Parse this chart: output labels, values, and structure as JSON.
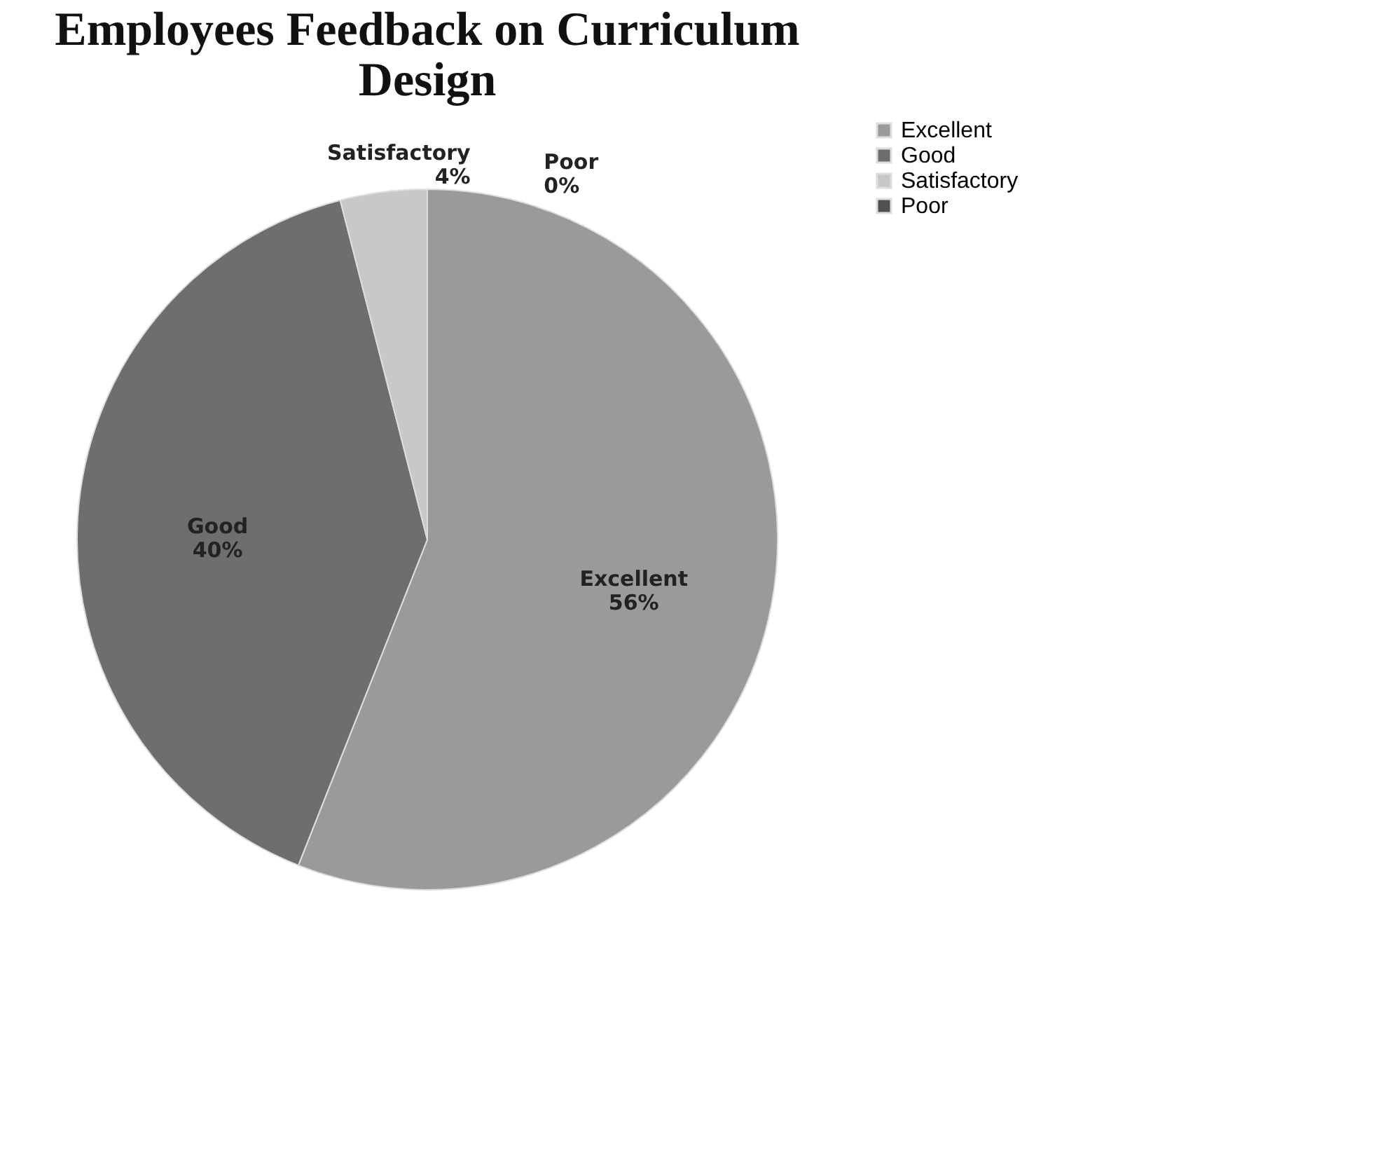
{
  "chart_data": {
    "type": "pie",
    "title": "Employees Feedback on Curriculum Design",
    "categories": [
      "Excellent",
      "Good",
      "Satisfactory",
      "Poor"
    ],
    "values": [
      56,
      40,
      4,
      0
    ],
    "value_labels": [
      "56%",
      "40%",
      "4%",
      "0%"
    ],
    "colors": [
      "#9a9a9a",
      "#6e6e6e",
      "#c8c8c8",
      "#505050"
    ],
    "legend": "right"
  }
}
